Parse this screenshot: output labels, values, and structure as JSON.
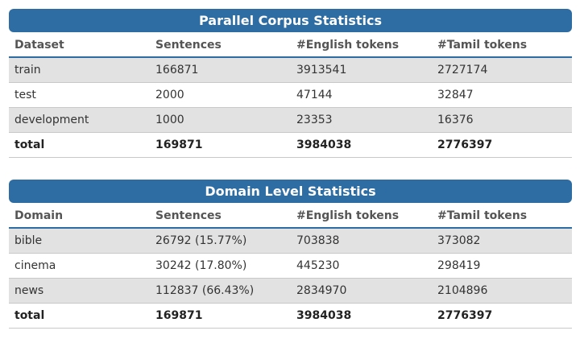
{
  "parallel": {
    "title": "Parallel Corpus Statistics",
    "headers": [
      "Dataset",
      "Sentences",
      "#English tokens",
      "#Tamil tokens"
    ],
    "rows": [
      [
        "train",
        "166871",
        "3913541",
        "2727174"
      ],
      [
        "test",
        "2000",
        "47144",
        "32847"
      ],
      [
        "development",
        "1000",
        "23353",
        "16376"
      ]
    ],
    "total": [
      "total",
      "169871",
      "3984038",
      "2776397"
    ]
  },
  "domain": {
    "title": "Domain Level Statistics",
    "headers": [
      "Domain",
      "Sentences",
      "#English tokens",
      "#Tamil tokens"
    ],
    "rows": [
      [
        "bible",
        "26792 (15.77%)",
        "703838",
        "373082"
      ],
      [
        "cinema",
        "30242 (17.80%)",
        "445230",
        "298419"
      ],
      [
        "news",
        "112837 (66.43%)",
        "2834970",
        "2104896"
      ]
    ],
    "total": [
      "total",
      "169871",
      "3984038",
      "2776397"
    ]
  },
  "colors": {
    "title_bar": "#2d6da3",
    "row_shade": "#e2e2e2"
  }
}
